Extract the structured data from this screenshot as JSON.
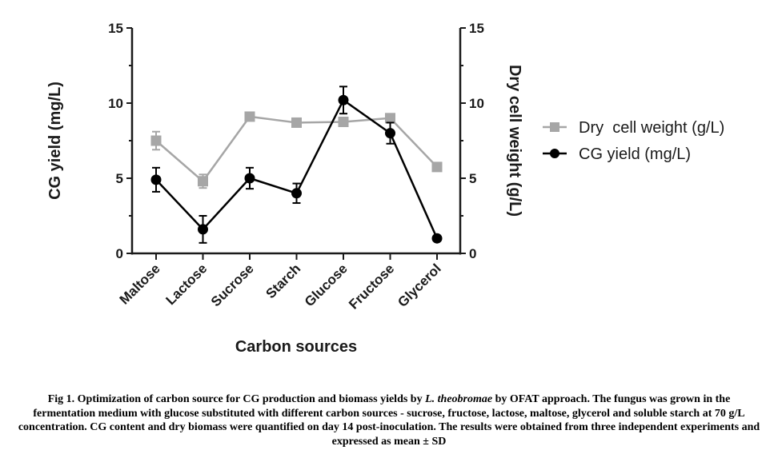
{
  "chart_data": {
    "type": "line",
    "xlabel": "Carbon sources",
    "ylabel_left": "CG yield (mg/L)",
    "ylabel_right": "Dry cell weight (g/L)",
    "ylim_left": [
      0,
      15
    ],
    "ylim_right": [
      0,
      15
    ],
    "yticks_left": [
      0,
      5,
      10,
      15
    ],
    "yticks_right": [
      0,
      5,
      10,
      15
    ],
    "grid": false,
    "legend_position": "right",
    "categories": [
      "Maltose",
      "Lactose",
      "Sucrose",
      "Starch",
      "Glucose",
      "Fructose",
      "Glycerol"
    ],
    "series": [
      {
        "name": "Dry  cell weight (g/L)",
        "axis": "right",
        "marker": "square",
        "color": "#a6a6a6",
        "values": [
          7.5,
          4.8,
          9.1,
          8.7,
          8.75,
          9.0,
          5.75
        ],
        "errors": [
          0.6,
          0.45,
          0.15,
          0.1,
          0.1,
          0.15,
          0.1
        ]
      },
      {
        "name": "CG yield (mg/L)",
        "axis": "left",
        "marker": "circle",
        "color": "#000000",
        "values": [
          4.9,
          1.6,
          5.0,
          4.0,
          10.2,
          8.0,
          1.0
        ],
        "errors": [
          0.8,
          0.9,
          0.7,
          0.65,
          0.9,
          0.7,
          0.05
        ]
      }
    ]
  },
  "caption": {
    "label": "Fig 1.",
    "text_before_species": "Optimization of carbon source for CG production and biomass yields by",
    "species": "L. theobromae",
    "text_after_species": "by OFAT approach. The fungus was grown in the fermentation medium with glucose substituted with different carbon sources - sucrose, fructose, lactose, maltose, glycerol and soluble starch at 70 g/L concentration. CG content and dry biomass were quantified on day 14 post-inoculation. The results were obtained from three independent experiments and expressed as mean ± SD"
  }
}
